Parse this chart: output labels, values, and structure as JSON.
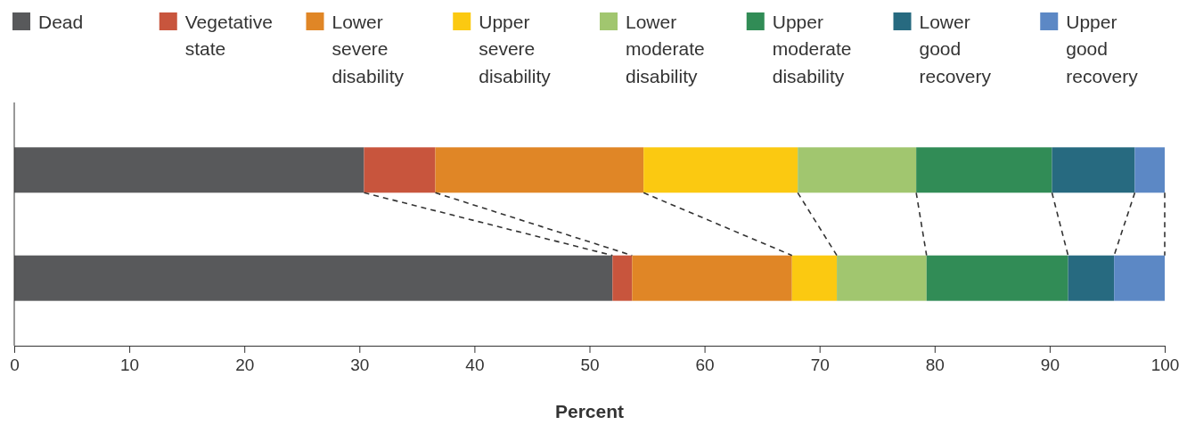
{
  "chart_data": {
    "type": "bar",
    "orientation": "horizontal",
    "stacked": true,
    "xlabel": "Percent",
    "categories": [
      null,
      null
    ],
    "xlim": [
      0,
      100
    ],
    "xticks": [
      0,
      10,
      20,
      30,
      40,
      50,
      60,
      70,
      80,
      90,
      100
    ],
    "grid": false,
    "legend": "top",
    "series": [
      {
        "name": "Dead",
        "color": "#58595b",
        "values": [
          30.4,
          52.0
        ]
      },
      {
        "name": "Vegetative state",
        "color": "#c8553d",
        "values": [
          6.2,
          1.7
        ]
      },
      {
        "name": "Lower severe disability",
        "color": "#e08626",
        "values": [
          18.1,
          13.9
        ]
      },
      {
        "name": "Upper severe disability",
        "color": "#fbc911",
        "values": [
          13.4,
          3.9
        ]
      },
      {
        "name": "Lower moderate disability",
        "color": "#a1c66f",
        "values": [
          10.3,
          7.8
        ]
      },
      {
        "name": "Upper moderate disability",
        "color": "#318c56",
        "values": [
          11.8,
          12.3
        ]
      },
      {
        "name": "Lower good recovery",
        "color": "#276a80",
        "values": [
          7.2,
          4.0
        ]
      },
      {
        "name": "Upper good recovery",
        "color": "#5c88c5",
        "values": [
          2.6,
          4.4
        ]
      }
    ]
  }
}
